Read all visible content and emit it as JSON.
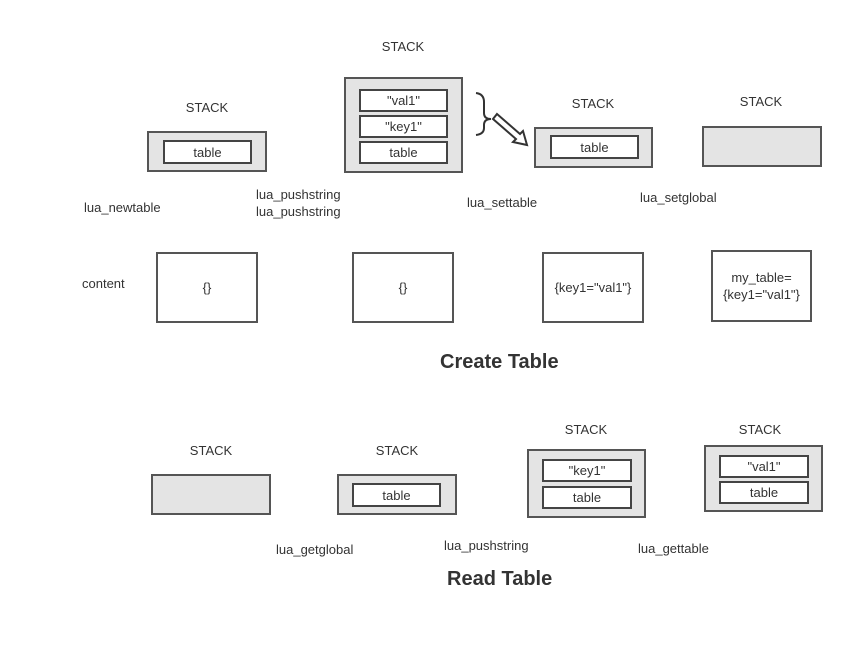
{
  "create": {
    "title": "Create Table",
    "stack_label": "STACK",
    "content_label": "content",
    "steps": [
      {
        "op": "lua_newtable",
        "cells": [
          "table"
        ],
        "content": "{}"
      },
      {
        "op": "lua_pushstring",
        "op2": "lua_pushstring",
        "cells": [
          "\"val1\"",
          "\"key1\"",
          "table"
        ],
        "content": "{}"
      },
      {
        "op": "lua_settable",
        "cells": [
          "table"
        ],
        "content": "{key1=\"val1\"}"
      },
      {
        "op": "lua_setglobal",
        "cells": [],
        "content_line1": "my_table=",
        "content_line2": "{key1=\"val1\"}"
      }
    ]
  },
  "read": {
    "title": "Read Table",
    "stack_label": "STACK",
    "steps": [
      {
        "op": "lua_getglobal",
        "cells": []
      },
      {
        "op": "lua_pushstring",
        "cells": [
          "table"
        ]
      },
      {
        "op": "lua_gettable",
        "cells": [
          "\"key1\"",
          "table"
        ]
      },
      {
        "cells": [
          "\"val1\"",
          "table"
        ]
      }
    ]
  }
}
